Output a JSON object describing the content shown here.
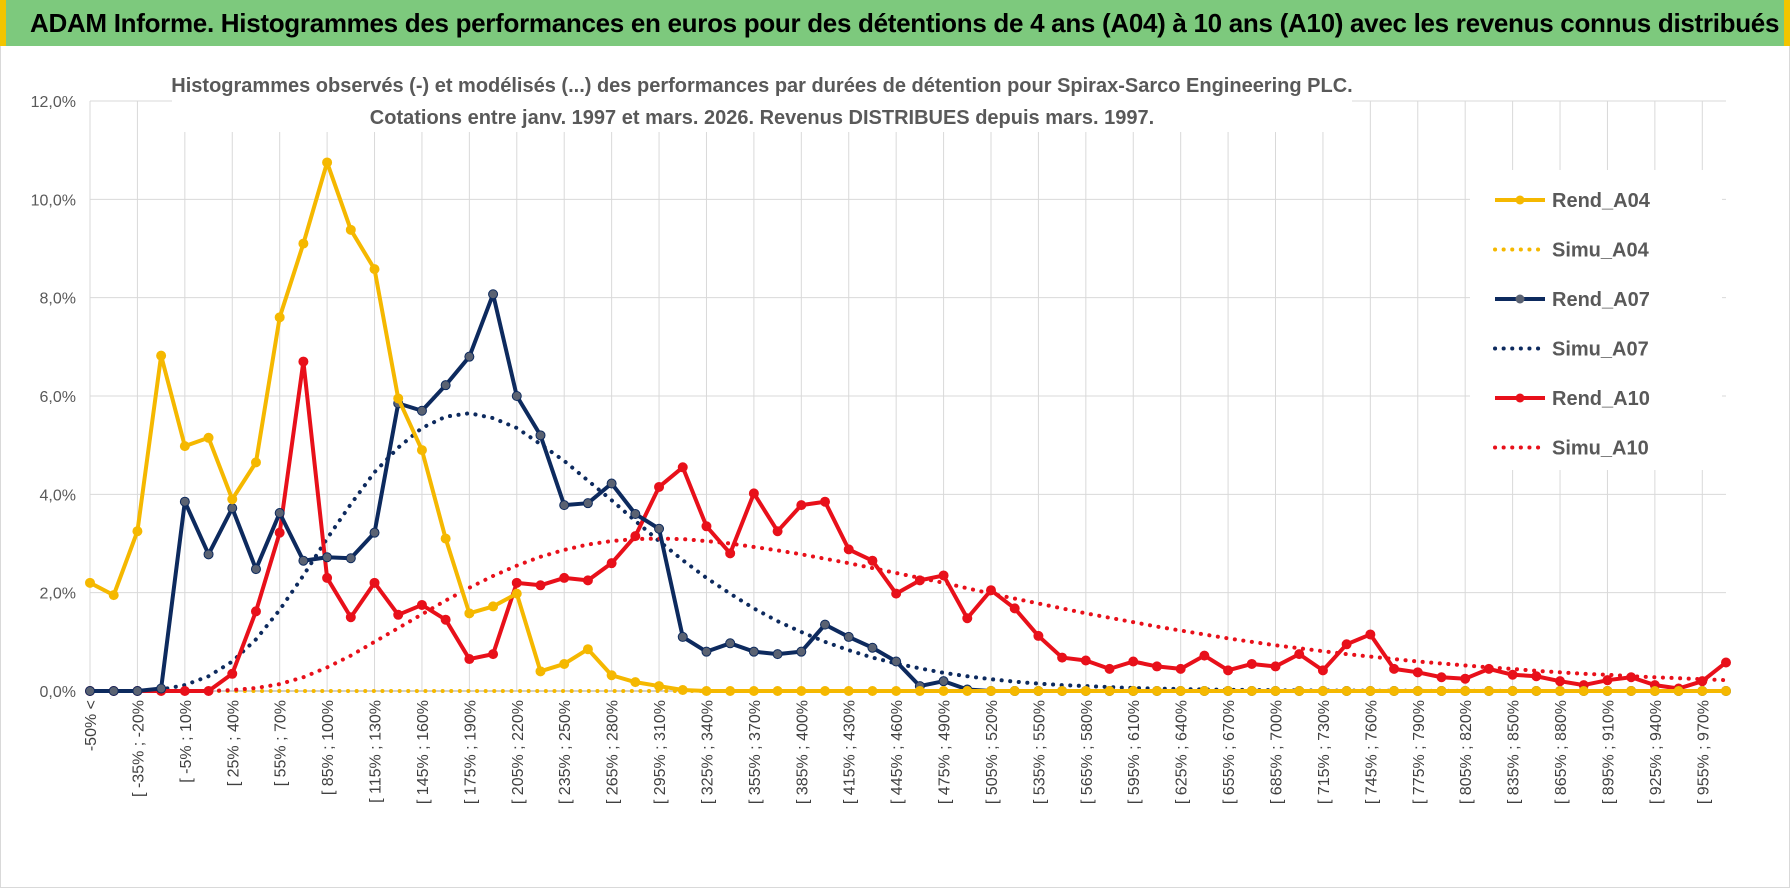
{
  "banner": {
    "title": "ADAM Informe. Histogrammes des performances en euros pour des détentions de 4 ans (A04) à 10 ans (A10) avec les revenus connus distribués"
  },
  "chart_data": {
    "type": "line",
    "title_line1": "Histogrammes observés (-) et modélisés (...) des performances par durées de détention pour Spirax-Sarco Engineering PLC.",
    "title_line2": "Cotations entre janv. 1997 et mars. 2026. Revenus DISTRIBUES depuis mars. 1997.",
    "ylim": [
      0,
      12
    ],
    "y_ticks": [
      "0,0%",
      "2,0%",
      "4,0%",
      "6,0%",
      "8,0%",
      "10,0%",
      "12,0%"
    ],
    "x_tick_labels": [
      "-50% <",
      "[ -35% ; -20%",
      "[ -5% ; 10%",
      "[ 25% ; 40%",
      "[ 55% ; 70%",
      "[ 85% ; 100%",
      "[ 115% ; 130%",
      "[ 145% ; 160%",
      "[ 175% ; 190%",
      "[ 205% ; 220%",
      "[ 235% ; 250%",
      "[ 265% ; 280%",
      "[ 295% ; 310%",
      "[ 325% ; 340%",
      "[ 355% ; 370%",
      "[ 385% ; 400%",
      "[ 415% ; 430%",
      "[ 445% ; 460%",
      "[ 475% ; 490%",
      "[ 505% ; 520%",
      "[ 535% ; 550%",
      "[ 565% ; 580%",
      "[ 595% ; 610%",
      "[ 625% ; 640%",
      "[ 655% ; 670%",
      "[ 685% ; 700%",
      "[ 715% ; 730%",
      "[ 745% ; 760%",
      "[ 775% ; 790%",
      "[ 805% ; 820%",
      "[ 835% ; 850%",
      "[ 865% ; 880%",
      "[ 895% ; 910%",
      "[ 925% ; 940%",
      "[ 955% ; 970%"
    ],
    "n_points": 70,
    "colors": {
      "A04": "#f5b800",
      "A07": "#0d2a5e",
      "A10": "#e8101a",
      "grid": "#d9d9d9"
    },
    "series": [
      {
        "name": "Rend_A04",
        "style": "solid",
        "color": "#f5b800",
        "values": [
          2.2,
          1.95,
          3.25,
          6.82,
          4.98,
          5.15,
          3.9,
          4.65,
          7.6,
          9.1,
          10.75,
          9.38,
          8.58,
          5.95,
          4.9,
          3.1,
          1.58,
          1.72,
          1.98,
          0.4,
          0.55,
          0.85,
          0.32,
          0.18,
          0.1,
          0.02,
          0,
          0,
          0,
          0,
          0,
          0,
          0,
          0,
          0,
          0,
          0,
          0,
          0,
          0,
          0,
          0,
          0,
          0,
          0,
          0,
          0,
          0,
          0,
          0,
          0,
          0,
          0,
          0,
          0,
          0,
          0,
          0,
          0,
          0,
          0,
          0,
          0,
          0,
          0,
          0,
          0,
          0,
          0,
          0
        ]
      },
      {
        "name": "Simu_A04",
        "style": "dotted",
        "color": "#f5b800",
        "values": [
          0,
          0,
          0,
          0,
          0,
          0,
          0,
          0,
          0,
          0,
          0,
          0,
          0,
          0,
          0,
          0,
          0,
          0,
          0,
          0,
          0,
          0,
          0,
          0,
          0,
          0,
          0,
          0,
          0,
          0,
          0,
          0,
          0,
          0,
          0,
          0,
          0,
          0,
          0,
          0,
          0,
          0,
          0,
          0,
          0,
          0,
          0,
          0,
          0,
          0,
          0,
          0,
          0,
          0,
          0,
          0,
          0,
          0,
          0,
          0,
          0,
          0,
          0,
          0,
          0,
          0,
          0,
          0,
          0,
          0
        ]
      },
      {
        "name": "Rend_A07",
        "style": "solid",
        "color": "#0d2a5e",
        "values": [
          0,
          0,
          0,
          0.05,
          3.85,
          2.78,
          3.72,
          2.48,
          3.62,
          2.65,
          2.72,
          2.7,
          3.22,
          5.85,
          5.7,
          6.22,
          6.8,
          8.07,
          6.0,
          5.2,
          3.78,
          3.82,
          4.22,
          3.6,
          3.3,
          1.1,
          0.8,
          0.97,
          0.8,
          0.75,
          0.8,
          1.35,
          1.1,
          0.88,
          0.6,
          0.1,
          0.2,
          0.03,
          0,
          0,
          0,
          0,
          0,
          0,
          0,
          0,
          0,
          0,
          0,
          0,
          0,
          0,
          0,
          0,
          0,
          0,
          0,
          0,
          0,
          0,
          0,
          0,
          0,
          0,
          0,
          0,
          0,
          0,
          0,
          0
        ]
      },
      {
        "name": "Simu_A07",
        "style": "dotted",
        "color": "#0d2a5e",
        "values": [
          0,
          0,
          0,
          0.03,
          0.12,
          0.3,
          0.6,
          1.05,
          1.65,
          2.35,
          3.1,
          3.8,
          4.45,
          4.95,
          5.35,
          5.58,
          5.65,
          5.55,
          5.35,
          5.02,
          4.68,
          4.28,
          3.88,
          3.46,
          3.05,
          2.66,
          2.3,
          1.98,
          1.68,
          1.42,
          1.2,
          1.0,
          0.83,
          0.68,
          0.56,
          0.46,
          0.37,
          0.3,
          0.24,
          0.19,
          0.15,
          0.12,
          0.1,
          0.08,
          0.06,
          0.05,
          0.04,
          0.03,
          0.025,
          0.02,
          0.015,
          0.012,
          0.01,
          0.008,
          0.006,
          0.005,
          0.004,
          0.003,
          0.002,
          0.002,
          0.001,
          0.001,
          0,
          0,
          0,
          0,
          0,
          0,
          0,
          0
        ]
      },
      {
        "name": "Rend_A10",
        "style": "solid",
        "color": "#e8101a",
        "values": [
          0,
          0,
          0,
          0,
          0,
          0,
          0.35,
          1.62,
          3.22,
          6.7,
          2.3,
          1.5,
          2.2,
          1.55,
          1.75,
          1.45,
          0.65,
          0.75,
          2.2,
          2.15,
          2.3,
          2.25,
          2.6,
          3.15,
          4.15,
          4.55,
          3.35,
          2.8,
          4.02,
          3.25,
          3.78,
          3.85,
          2.88,
          2.65,
          1.98,
          2.25,
          2.35,
          1.48,
          2.05,
          1.68,
          1.12,
          0.68,
          0.62,
          0.45,
          0.6,
          0.5,
          0.45,
          0.72,
          0.42,
          0.55,
          0.5,
          0.75,
          0.42,
          0.95,
          1.15,
          0.45,
          0.38,
          0.28,
          0.25,
          0.45,
          0.33,
          0.3,
          0.2,
          0.12,
          0.22,
          0.28,
          0.12,
          0.05,
          0.2,
          0.58
        ]
      },
      {
        "name": "Simu_A10",
        "style": "dotted",
        "color": "#e8101a",
        "values": [
          0,
          0,
          0,
          0,
          0,
          0,
          0.02,
          0.06,
          0.14,
          0.28,
          0.48,
          0.72,
          1.0,
          1.28,
          1.56,
          1.84,
          2.1,
          2.34,
          2.55,
          2.73,
          2.87,
          2.98,
          3.05,
          3.09,
          3.1,
          3.09,
          3.05,
          3.0,
          2.93,
          2.86,
          2.78,
          2.69,
          2.6,
          2.5,
          2.4,
          2.3,
          2.2,
          2.09,
          1.98,
          1.88,
          1.78,
          1.68,
          1.58,
          1.49,
          1.4,
          1.31,
          1.23,
          1.15,
          1.07,
          1.0,
          0.93,
          0.87,
          0.81,
          0.75,
          0.7,
          0.65,
          0.6,
          0.56,
          0.52,
          0.48,
          0.45,
          0.41,
          0.38,
          0.35,
          0.33,
          0.3,
          0.28,
          0.26,
          0.24,
          0.22
        ]
      }
    ],
    "legend": [
      "Rend_A04",
      "Simu_A04",
      "Rend_A07",
      "Simu_A07",
      "Rend_A10",
      "Simu_A10"
    ]
  }
}
